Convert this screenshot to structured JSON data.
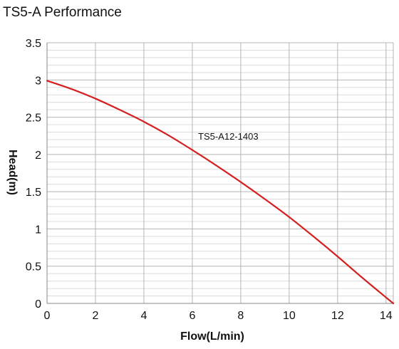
{
  "chart_data": {
    "type": "line",
    "title": "TS5-A Performance",
    "xlabel": "Flow(L/min)",
    "ylabel": "Head(m)",
    "xlim": [
      0,
      14.3
    ],
    "ylim": [
      0,
      3.5
    ],
    "x_ticks": [
      "0",
      "2",
      "4",
      "6",
      "8",
      "10",
      "12",
      "14"
    ],
    "y_ticks": [
      "0",
      "0.5",
      "1",
      "1.5",
      "2",
      "2.5",
      "3",
      "3.5"
    ],
    "grid": {
      "major": true,
      "minor_y": true
    },
    "series": [
      {
        "name": "TS5-A12-1403",
        "color": "#d42020",
        "x": [
          0,
          1,
          2,
          3,
          4,
          5,
          6,
          7,
          8,
          9,
          10,
          11,
          12,
          13,
          14,
          14.3
        ],
        "y": [
          2.99,
          2.88,
          2.75,
          2.6,
          2.44,
          2.26,
          2.06,
          1.85,
          1.63,
          1.4,
          1.16,
          0.9,
          0.63,
          0.35,
          0.08,
          0.0
        ]
      }
    ]
  }
}
